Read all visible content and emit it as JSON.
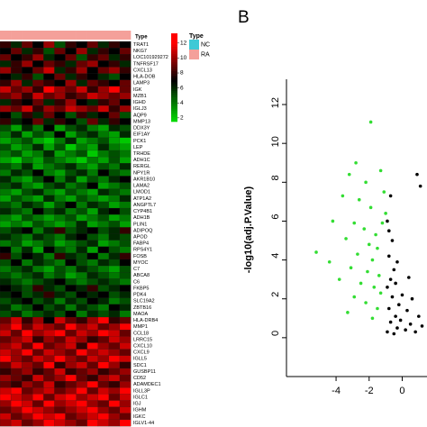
{
  "chart_data": [
    {
      "type": "heatmap",
      "column_label": "Type",
      "column_types": [
        "RA",
        "RA",
        "RA",
        "RA",
        "RA",
        "RA",
        "RA",
        "RA",
        "RA",
        "RA",
        "RA",
        "RA"
      ],
      "legend_title": "Type",
      "legend": [
        {
          "name": "NC",
          "color": "#3ec9d6"
        },
        {
          "name": "RA",
          "color": "#f4a09a"
        }
      ],
      "colors": [
        "#00dd00",
        "#000000",
        "#ff0000"
      ],
      "zlim": [
        1.5,
        13.3
      ],
      "zmid": 7,
      "zticks": [
        12,
        10,
        8,
        6,
        4,
        2
      ],
      "row_labels": [
        "TRAT1",
        "NKG7",
        "LOC101929272",
        "TNFRSF17",
        "CXCL13",
        "HLA-DOB",
        "LAMP3",
        "IGK",
        "MZB1",
        "IGHD",
        "IGLJ3",
        "AQP9",
        "MMP13",
        "DDX3Y",
        "EIF1AY",
        "PCK1",
        "LEP",
        "TRHDE",
        "ADH1C",
        "RERGL",
        "NPY1R",
        "AKR1B10",
        "LAMA2",
        "LMOD1",
        "ATP1A2",
        "ANGPTL7",
        "CYP4B1",
        "ADH1B",
        "PLIN1",
        "ADIPOQ",
        "APOD",
        "FABP4",
        "RPS4Y1",
        "FOSB",
        "MYOC",
        "C7",
        "ABCA8",
        "C6",
        "FKBP5",
        "PDK4",
        "SLC19A2",
        "ZBTB16",
        "MAOA",
        "HLA-DRB4",
        "MMP1",
        "CCL18",
        "LRRC15",
        "CXCL10",
        "CXCL9",
        "IGLL5",
        "SDC1",
        "GUSBP11",
        "CD52",
        "ADAMDEC1",
        "IGLL3P",
        "IGLC1",
        "IGJ",
        "IGHM",
        "IGKC",
        "IGLV1-44"
      ],
      "values": [
        [
          8,
          6,
          9,
          7,
          10,
          5,
          8,
          7,
          9,
          6,
          8,
          7
        ],
        [
          7,
          9,
          6,
          8,
          5,
          9,
          7,
          10,
          6,
          8,
          7,
          9
        ],
        [
          9,
          7,
          8,
          10,
          6,
          7,
          9,
          5,
          8,
          9,
          6,
          8
        ],
        [
          6,
          8,
          10,
          7,
          9,
          8,
          6,
          9,
          10,
          7,
          8,
          6
        ],
        [
          10,
          8,
          7,
          9,
          11,
          6,
          8,
          10,
          7,
          9,
          10,
          8
        ],
        [
          7,
          6,
          8,
          5,
          7,
          9,
          6,
          8,
          7,
          6,
          5,
          7
        ],
        [
          8,
          10,
          6,
          9,
          8,
          7,
          10,
          6,
          9,
          8,
          7,
          9
        ],
        [
          11,
          9,
          10,
          8,
          12,
          10,
          9,
          11,
          8,
          10,
          12,
          9
        ],
        [
          9,
          10,
          8,
          11,
          9,
          10,
          8,
          9,
          11,
          10,
          9,
          10
        ],
        [
          6,
          8,
          7,
          9,
          6,
          8,
          10,
          7,
          6,
          8,
          9,
          7
        ],
        [
          10,
          9,
          11,
          8,
          10,
          9,
          11,
          10,
          9,
          11,
          8,
          10
        ],
        [
          7,
          5,
          8,
          6,
          9,
          7,
          5,
          8,
          6,
          7,
          9,
          5
        ],
        [
          8,
          6,
          7,
          9,
          6,
          8,
          7,
          5,
          9,
          6,
          8,
          7
        ],
        [
          5,
          3,
          6,
          4,
          7,
          3,
          5,
          6,
          4,
          3,
          6,
          5
        ],
        [
          4,
          6,
          3,
          5,
          4,
          7,
          3,
          5,
          6,
          4,
          3,
          6
        ],
        [
          3,
          4,
          5,
          3,
          2,
          4,
          6,
          3,
          4,
          5,
          3,
          2
        ],
        [
          5,
          3,
          4,
          6,
          3,
          5,
          2,
          4,
          3,
          6,
          4,
          3
        ],
        [
          4,
          5,
          3,
          4,
          6,
          3,
          4,
          5,
          2,
          4,
          5,
          4
        ],
        [
          3,
          2,
          4,
          3,
          5,
          4,
          3,
          2,
          4,
          3,
          5,
          3
        ],
        [
          5,
          4,
          6,
          3,
          4,
          5,
          6,
          4,
          3,
          5,
          4,
          6
        ],
        [
          4,
          6,
          5,
          7,
          4,
          3,
          5,
          6,
          4,
          7,
          5,
          4
        ],
        [
          6,
          4,
          3,
          5,
          7,
          4,
          6,
          3,
          5,
          4,
          6,
          7
        ],
        [
          5,
          6,
          4,
          3,
          5,
          6,
          4,
          5,
          7,
          3,
          4,
          5
        ],
        [
          4,
          3,
          5,
          6,
          4,
          3,
          5,
          4,
          3,
          6,
          5,
          4
        ],
        [
          3,
          5,
          4,
          3,
          6,
          4,
          3,
          5,
          4,
          3,
          4,
          6
        ],
        [
          5,
          4,
          6,
          5,
          3,
          5,
          7,
          4,
          6,
          5,
          3,
          4
        ],
        [
          6,
          5,
          4,
          7,
          5,
          6,
          4,
          5,
          3,
          6,
          7,
          5
        ],
        [
          4,
          3,
          5,
          4,
          3,
          4,
          5,
          3,
          4,
          5,
          3,
          4
        ],
        [
          3,
          4,
          3,
          5,
          4,
          3,
          4,
          6,
          3,
          4,
          5,
          3
        ],
        [
          5,
          6,
          7,
          4,
          6,
          8,
          5,
          6,
          7,
          5,
          6,
          8
        ],
        [
          6,
          5,
          4,
          6,
          5,
          4,
          6,
          7,
          5,
          4,
          6,
          5
        ],
        [
          4,
          5,
          3,
          4,
          5,
          3,
          4,
          5,
          6,
          3,
          4,
          5
        ],
        [
          7,
          4,
          6,
          3,
          7,
          5,
          4,
          6,
          3,
          7,
          5,
          4
        ],
        [
          8,
          5,
          7,
          6,
          4,
          8,
          6,
          5,
          7,
          4,
          6,
          8
        ],
        [
          5,
          7,
          4,
          6,
          5,
          4,
          7,
          5,
          4,
          6,
          5,
          7
        ],
        [
          4,
          5,
          6,
          4,
          3,
          5,
          4,
          6,
          5,
          4,
          3,
          5
        ],
        [
          5,
          4,
          5,
          6,
          4,
          5,
          3,
          4,
          6,
          5,
          4,
          5
        ],
        [
          6,
          5,
          4,
          5,
          6,
          7,
          5,
          4,
          5,
          6,
          5,
          4
        ],
        [
          7,
          6,
          5,
          8,
          6,
          5,
          7,
          6,
          8,
          5,
          6,
          7
        ],
        [
          6,
          7,
          5,
          6,
          8,
          6,
          5,
          7,
          6,
          7,
          5,
          6
        ],
        [
          5,
          6,
          7,
          5,
          6,
          4,
          6,
          5,
          7,
          6,
          4,
          5
        ],
        [
          6,
          4,
          5,
          7,
          5,
          6,
          4,
          6,
          5,
          4,
          7,
          6
        ],
        [
          5,
          6,
          4,
          5,
          6,
          5,
          7,
          4,
          6,
          5,
          6,
          4
        ],
        [
          9,
          11,
          8,
          10,
          7,
          11,
          9,
          8,
          10,
          12,
          8,
          9
        ],
        [
          10,
          12,
          9,
          11,
          10,
          9,
          12,
          10,
          11,
          9,
          10,
          12
        ],
        [
          11,
          9,
          12,
          10,
          11,
          12,
          9,
          11,
          10,
          12,
          11,
          9
        ],
        [
          9,
          10,
          11,
          8,
          10,
          9,
          11,
          10,
          8,
          9,
          11,
          10
        ],
        [
          10,
          11,
          9,
          12,
          9,
          10,
          11,
          8,
          12,
          10,
          9,
          11
        ],
        [
          11,
          10,
          12,
          9,
          11,
          10,
          9,
          12,
          10,
          11,
          10,
          9
        ],
        [
          12,
          10,
          9,
          11,
          10,
          12,
          10,
          9,
          11,
          10,
          12,
          11
        ],
        [
          9,
          11,
          10,
          9,
          12,
          8,
          10,
          11,
          9,
          12,
          10,
          8
        ],
        [
          8,
          9,
          10,
          8,
          9,
          11,
          8,
          9,
          10,
          8,
          9,
          10
        ],
        [
          10,
          9,
          8,
          11,
          9,
          10,
          12,
          9,
          8,
          10,
          11,
          9
        ],
        [
          9,
          8,
          10,
          9,
          11,
          8,
          9,
          10,
          12,
          9,
          8,
          10
        ],
        [
          11,
          12,
          9,
          10,
          11,
          9,
          10,
          12,
          9,
          11,
          10,
          12
        ],
        [
          12,
          11,
          10,
          12,
          9,
          11,
          12,
          10,
          11,
          12,
          9,
          11
        ],
        [
          10,
          12,
          11,
          9,
          12,
          10,
          11,
          12,
          10,
          9,
          12,
          10
        ],
        [
          9,
          10,
          12,
          11,
          10,
          9,
          10,
          11,
          12,
          10,
          9,
          11
        ],
        [
          11,
          9,
          10,
          12,
          11,
          12,
          9,
          10,
          11,
          12,
          10,
          9
        ],
        [
          10,
          11,
          9,
          10,
          12,
          11,
          10,
          9,
          12,
          11,
          10,
          12
        ]
      ]
    },
    {
      "type": "scatter",
      "panel_label": "B",
      "ylabel": "-log10(adj.P.Value)",
      "xlim": [
        -7,
        1.5
      ],
      "ylim": [
        -2,
        13.3
      ],
      "xticks": [
        -4,
        -2,
        0
      ],
      "yticks": [
        0,
        2,
        4,
        6,
        8,
        10,
        12
      ],
      "series": [
        {
          "color": "#33dd33",
          "x": [
            -1.9,
            -2.8,
            -3.2,
            -2.2,
            -3.6,
            -2.6,
            -1.9,
            -4.2,
            -2.9,
            -2.3,
            -1.6,
            -3.4,
            -2.0,
            -1.5,
            -5.2,
            -2.7,
            -1.8,
            -4.4,
            -3.1,
            -2.1,
            -1.4,
            -3.8,
            -2.5,
            -1.7,
            -1.3,
            -2.9,
            -2.2,
            -1.5,
            -3.3,
            -1.8,
            -1.2,
            -1.1,
            -1.0,
            -1.3
          ],
          "y": [
            11.1,
            9.0,
            8.4,
            8.0,
            7.3,
            7.1,
            6.7,
            6.0,
            5.9,
            5.6,
            5.3,
            5.1,
            4.8,
            4.6,
            4.4,
            4.3,
            4.0,
            3.9,
            3.6,
            3.4,
            3.2,
            3.0,
            2.8,
            2.6,
            2.3,
            2.1,
            1.8,
            1.5,
            1.3,
            1.0,
            5.9,
            7.5,
            6.4,
            8.6
          ]
        },
        {
          "color": "#000000",
          "x": [
            -0.9,
            -0.7,
            -0.5,
            -0.8,
            -0.6,
            -0.4,
            -0.9,
            -0.3,
            -0.2,
            -0.7,
            -0.5,
            -0.8,
            -0.6,
            -0.4,
            -0.1,
            0.0,
            0.2,
            0.3,
            0.5,
            0.6,
            0.8,
            1.0,
            1.2,
            -0.9,
            -0.7,
            -0.8,
            0.9,
            1.1,
            -0.3,
            0.4
          ],
          "y": [
            0.3,
            0.8,
            0.2,
            1.5,
            2.1,
            1.1,
            2.6,
            0.5,
            1.7,
            3.0,
            3.5,
            4.2,
            5.0,
            2.8,
            0.9,
            2.2,
            0.4,
            1.4,
            0.7,
            2.0,
            0.3,
            1.1,
            0.6,
            6.0,
            7.3,
            5.5,
            8.4,
            7.8,
            3.9,
            3.1
          ]
        }
      ]
    }
  ]
}
